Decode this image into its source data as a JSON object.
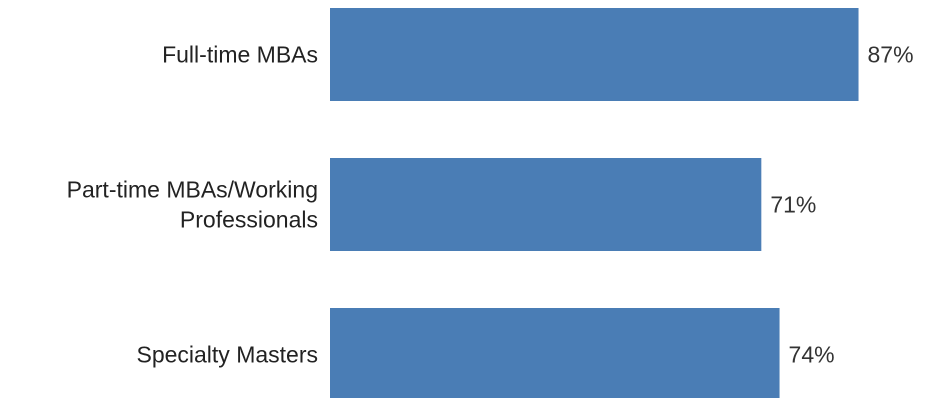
{
  "chart_data": {
    "type": "bar",
    "orientation": "horizontal",
    "categories": [
      [
        "Full-time MBAs"
      ],
      [
        "Part-time MBAs/Working",
        "Professionals"
      ],
      [
        "Specialty Masters"
      ]
    ],
    "values": [
      87,
      71,
      74
    ],
    "value_labels": [
      "87%",
      "71%",
      "74%"
    ],
    "xlim": [
      0,
      100
    ],
    "grid": false,
    "legend": "none",
    "bar_color": "#4a7db5"
  }
}
